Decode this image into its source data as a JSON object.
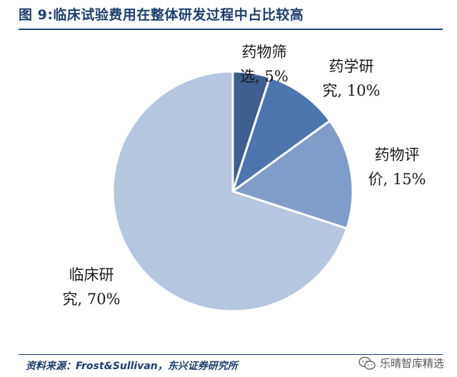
{
  "figure": {
    "title": "图 9:临床试验费用在整体研发过程中占比较高",
    "source": "资料来源：Frost&Sullivan，东兴证券研究所"
  },
  "watermark": {
    "text": "乐晴智库精选",
    "icon": "wechat-icon"
  },
  "chart_data": {
    "type": "pie",
    "title": "图 9:临床试验费用在整体研发过程中占比较高",
    "slices": [
      {
        "line1": "药物筛",
        "line2": "选, 5%",
        "value": 5,
        "color": "#3e5f8f"
      },
      {
        "line1": "药学研",
        "line2": "究, 10%",
        "value": 10,
        "color": "#4d76af"
      },
      {
        "line1": "药物评",
        "line2": "价, 15%",
        "value": 15,
        "color": "#7f9dc8"
      },
      {
        "line1": "临床研",
        "line2": "究, 70%",
        "value": 70,
        "color": "#b7c6df"
      }
    ],
    "start_angle": "12 o'clock",
    "direction": "clockwise",
    "legend": "none"
  }
}
